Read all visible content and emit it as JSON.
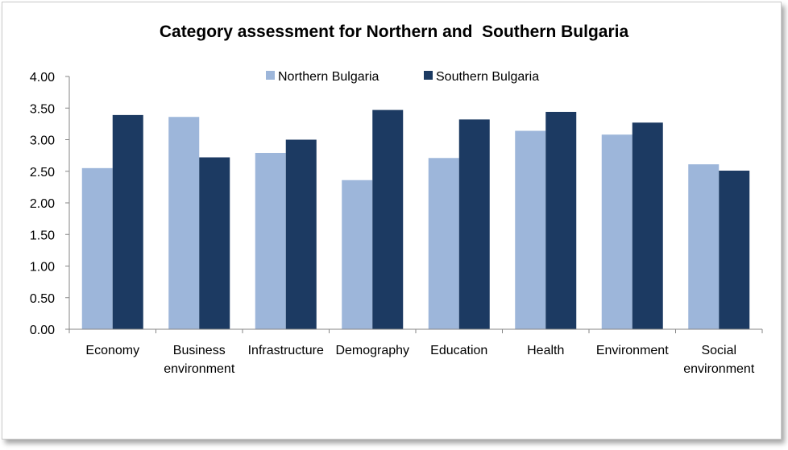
{
  "chart_data": {
    "type": "bar",
    "title": "Category assessment for Northern and  Southern Bulgaria",
    "xlabel": "",
    "ylabel": "",
    "ylim": [
      0,
      4
    ],
    "yticks": [
      "0.00",
      "0.50",
      "1.00",
      "1.50",
      "2.00",
      "2.50",
      "3.00",
      "3.50",
      "4.00"
    ],
    "grid": false,
    "legend_position": "top",
    "categories": [
      [
        "Economy"
      ],
      [
        "Business",
        "environment"
      ],
      [
        "Infrastructure"
      ],
      [
        "Demography"
      ],
      [
        "Education"
      ],
      [
        "Health"
      ],
      [
        "Environment"
      ],
      [
        "Social",
        "environment"
      ]
    ],
    "series": [
      {
        "name": "Northern Bulgaria",
        "color": "#9db6da",
        "values": [
          2.55,
          3.36,
          2.79,
          2.36,
          2.71,
          3.14,
          3.08,
          2.61
        ]
      },
      {
        "name": "Southern Bulgaria",
        "color": "#1c3a62",
        "values": [
          3.39,
          2.72,
          3.0,
          3.47,
          3.32,
          3.44,
          3.27,
          2.51
        ]
      }
    ]
  }
}
